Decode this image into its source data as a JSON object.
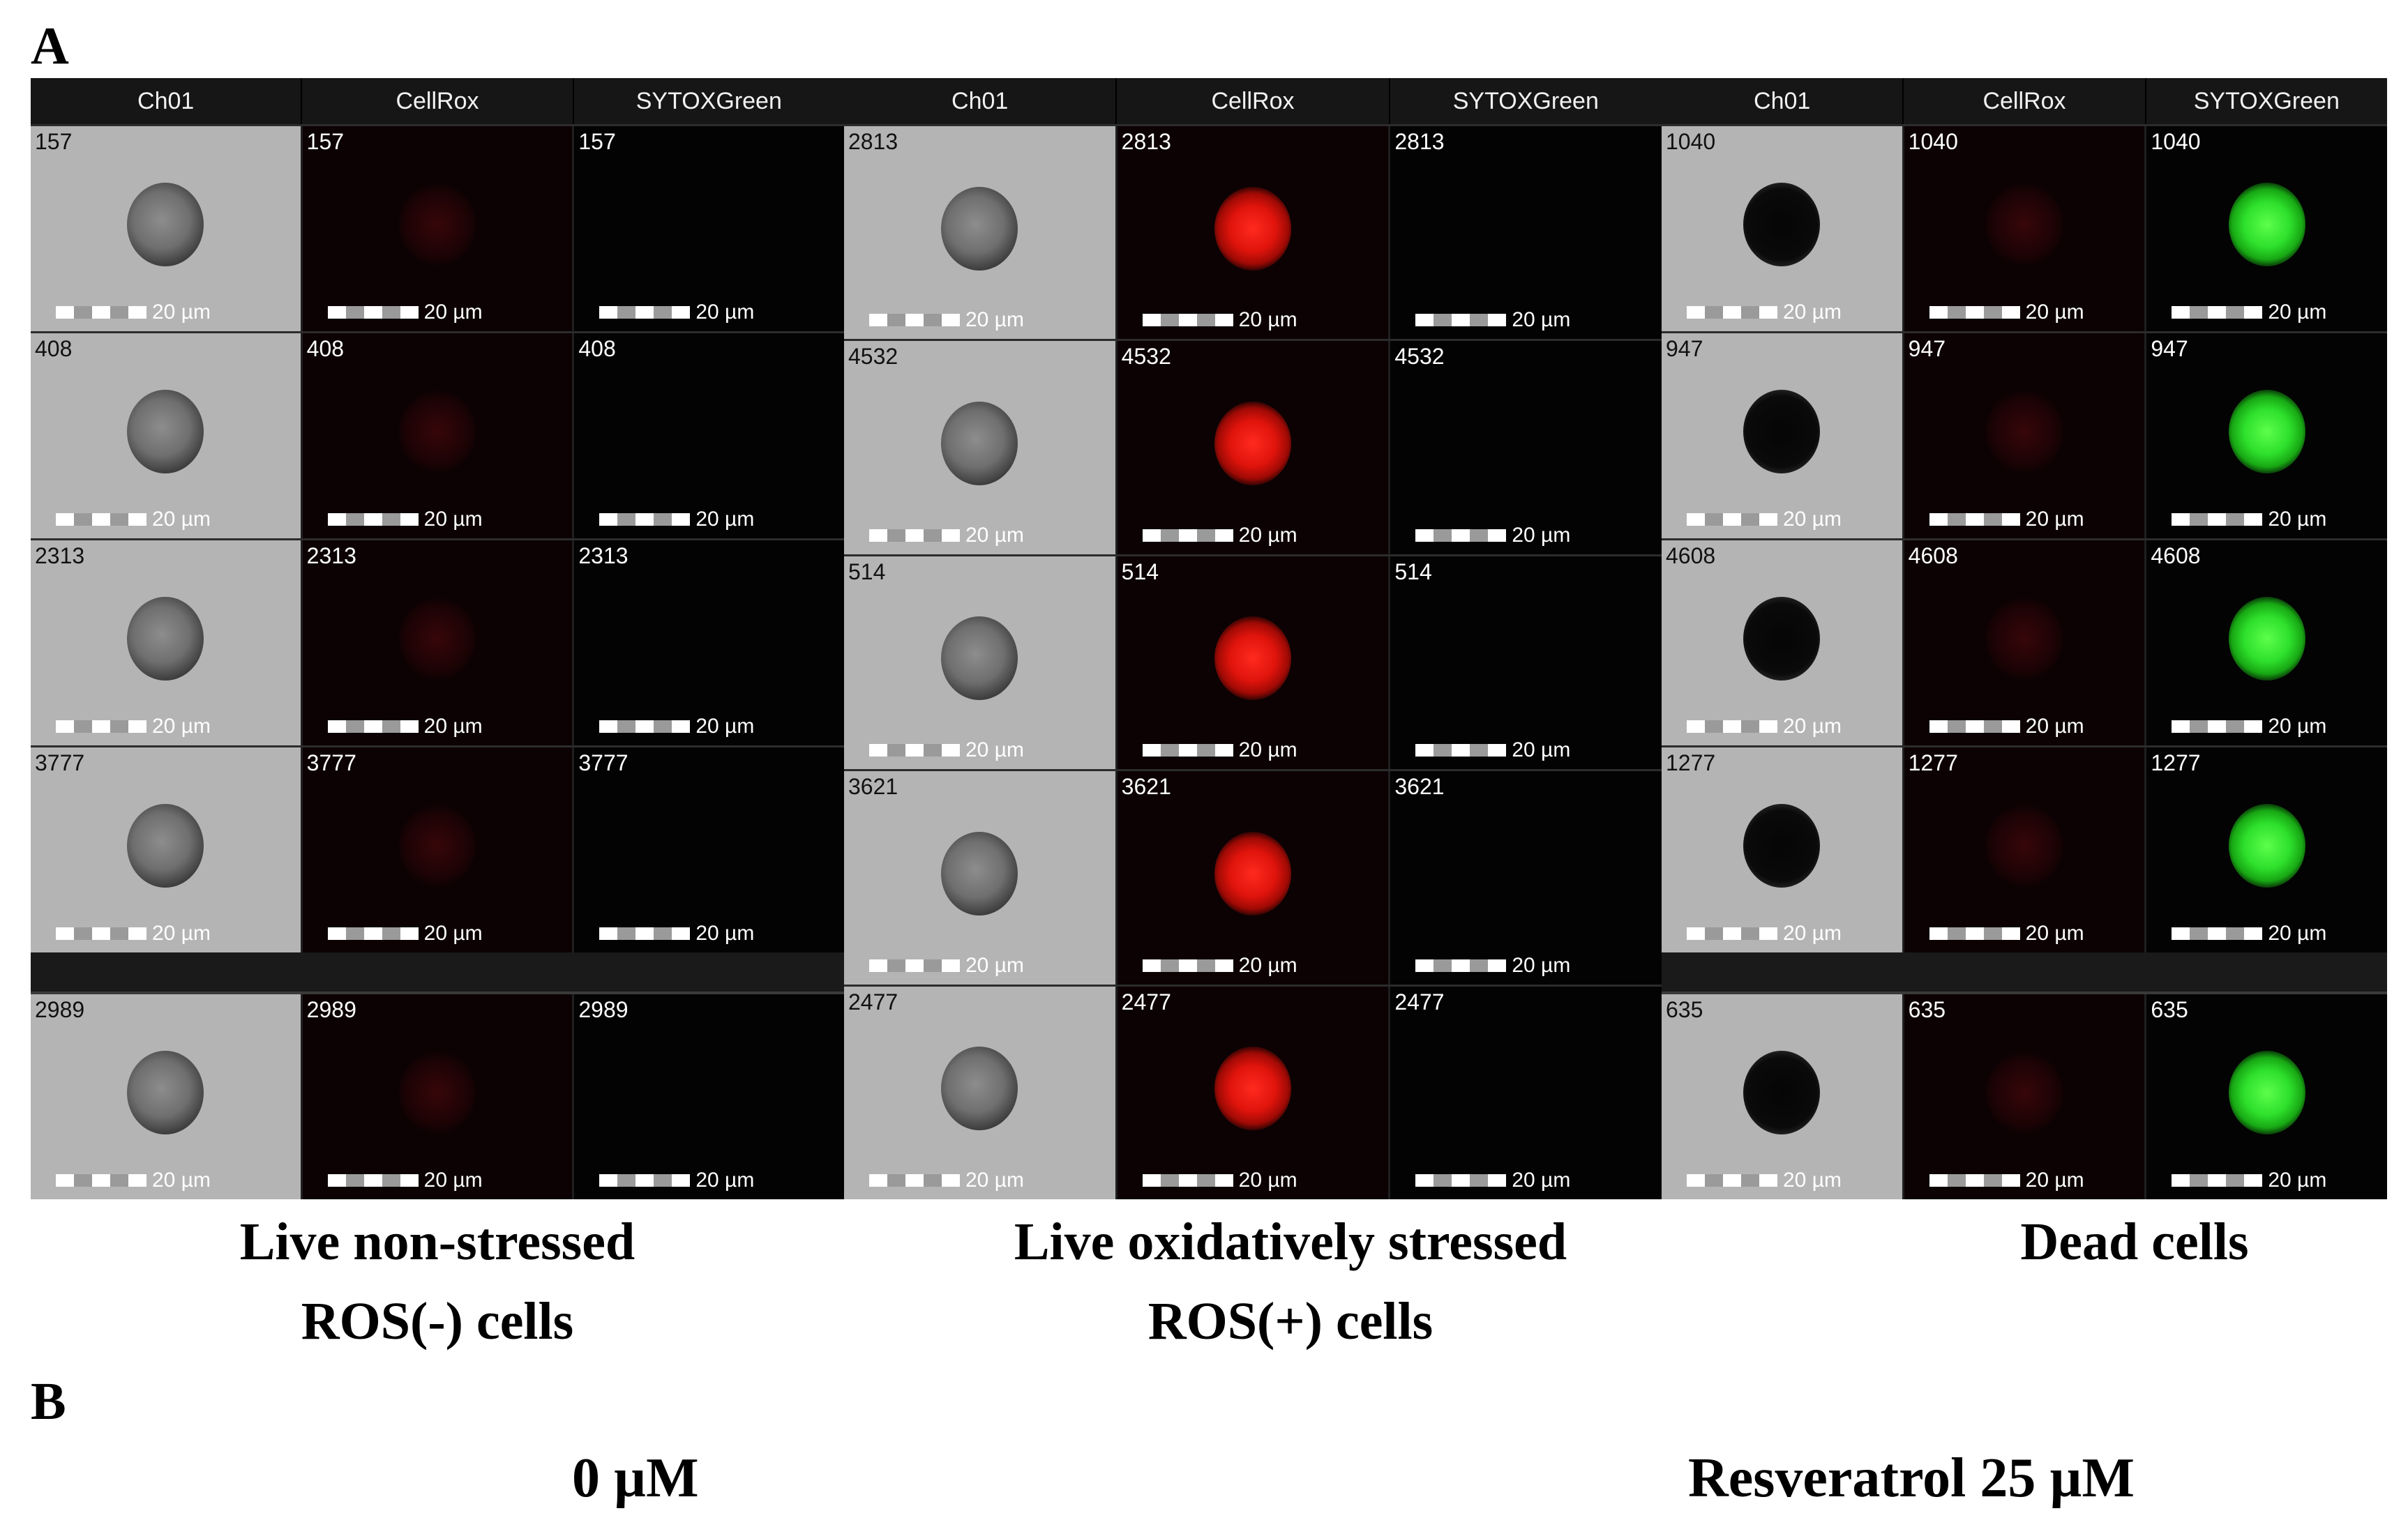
{
  "panel_a_label": "A",
  "panel_b_label": "B",
  "scale_label": "20 µm",
  "groups": [
    {
      "channels": [
        "Ch01",
        "CellRox",
        "SYTOXGreen"
      ],
      "rows": [
        {
          "id": "157",
          "red": "dim",
          "green": "none"
        },
        {
          "id": "408",
          "red": "dim",
          "green": "none"
        },
        {
          "id": "2313",
          "red": "dim",
          "green": "none"
        },
        {
          "id": "3777",
          "red": "dim",
          "green": "none"
        },
        {
          "id": "2989",
          "red": "dim",
          "green": "none"
        }
      ],
      "caption_line1": "Live non-stressed",
      "caption_line2": "ROS(-) cells"
    },
    {
      "channels": [
        "Ch01",
        "CellRox",
        "SYTOXGreen"
      ],
      "rows": [
        {
          "id": "2813",
          "red": "bright",
          "green": "none"
        },
        {
          "id": "4532",
          "red": "bright",
          "green": "none"
        },
        {
          "id": "514",
          "red": "bright",
          "green": "none"
        },
        {
          "id": "3621",
          "red": "bright",
          "green": "none"
        },
        {
          "id": "2477",
          "red": "bright",
          "green": "none"
        }
      ],
      "caption_line1": "Live oxidatively stressed",
      "caption_line2": "ROS(+) cells"
    },
    {
      "channels": [
        "Ch01",
        "CellRox",
        "SYTOXGreen"
      ],
      "rows": [
        {
          "id": "1040",
          "red": "dim",
          "green": "bright"
        },
        {
          "id": "947",
          "red": "dim",
          "green": "bright"
        },
        {
          "id": "4608",
          "red": "dim",
          "green": "bright"
        },
        {
          "id": "1277",
          "red": "dim",
          "green": "bright"
        },
        {
          "id": "635",
          "red": "dim",
          "green": "bright"
        }
      ],
      "caption_line1": "Dead cells",
      "caption_line2": ""
    }
  ],
  "conditions": [
    "0 µM",
    "Resveratrol 25 µM"
  ]
}
